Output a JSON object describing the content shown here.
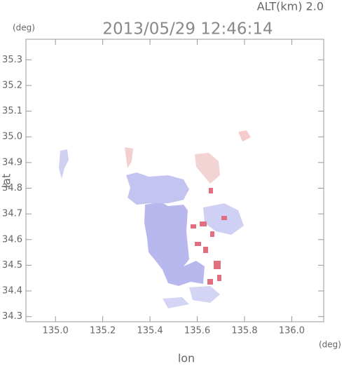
{
  "chart_data": {
    "type": "map",
    "title": "2013/05/29 12:46:14",
    "altitude_label": "ALT(km) 2.0",
    "y_unit": "(deg)",
    "x_unit": "(deg)",
    "x_label": "lon",
    "y_label": "lat",
    "xlim": [
      134.875,
      136.135
    ],
    "ylim": [
      34.28,
      35.38
    ],
    "xticks": [
      {
        "value": 135.0,
        "label": "135.0"
      },
      135.2,
      135.4,
      135.6,
      135.8,
      {
        "value": 136.0,
        "label": "136.0"
      }
    ],
    "yticks": [
      34.3,
      34.4,
      34.5,
      34.6,
      34.7,
      34.8,
      34.9,
      {
        "value": 35.0,
        "label": "35.0"
      },
      35.1,
      35.2,
      35.3
    ]
  }
}
